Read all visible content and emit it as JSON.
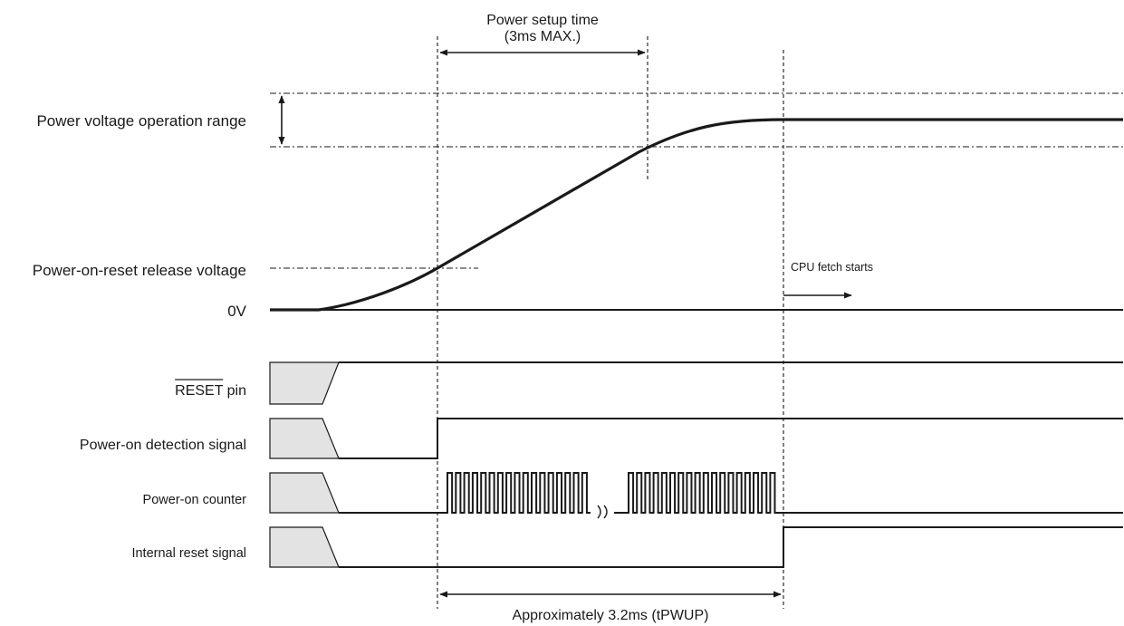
{
  "labels": {
    "power_voltage_range": "Power voltage operation range",
    "por_release_voltage": "Power-on-reset release voltage",
    "zero_volt": "0V",
    "reset_pin_name": "RESET",
    "reset_pin_suffix": " pin",
    "power_on_detection": "Power-on detection signal",
    "power_on_counter": "Power-on counter",
    "internal_reset": "Internal reset signal"
  },
  "annotations": {
    "setup_time_line1": "Power setup time",
    "setup_time_line2": "(3ms MAX.)",
    "cpu_fetch": "CPU fetch starts",
    "approx_time": "Approximately 3.2ms (tPWUP)"
  }
}
